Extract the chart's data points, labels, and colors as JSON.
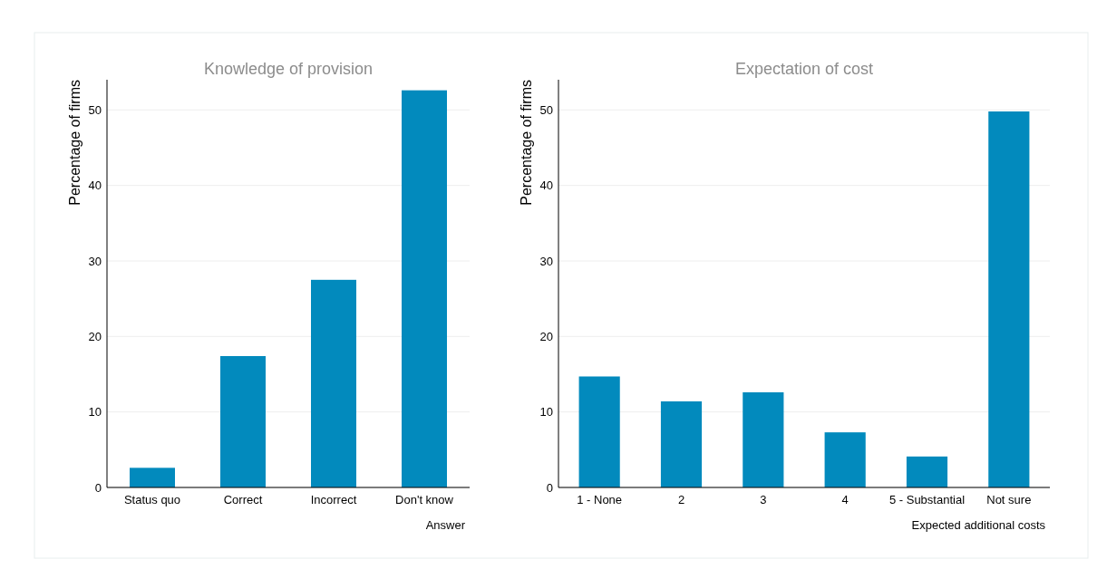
{
  "chart_data": [
    {
      "type": "bar",
      "title": "Knowledge of provision",
      "xlabel": "Answer",
      "ylabel": "Percentage of firms",
      "categories": [
        "Status quo",
        "Correct",
        "Incorrect",
        "Don't know"
      ],
      "values": [
        2.6,
        17.4,
        27.5,
        52.6
      ],
      "color": "#028abd",
      "ylim": [
        0,
        54
      ],
      "yticks": [
        0,
        10,
        20,
        30,
        40,
        50
      ],
      "grid": "y"
    },
    {
      "type": "bar",
      "title": "Expectation of cost",
      "xlabel": "Expected additional costs",
      "ylabel": "Percentage of firms",
      "categories": [
        "1 - None",
        "2",
        "3",
        "4",
        "5 - Substantial",
        "Not sure"
      ],
      "values": [
        14.7,
        11.4,
        12.6,
        7.3,
        4.1,
        49.8
      ],
      "color": "#028abd",
      "ylim": [
        0,
        54
      ],
      "yticks": [
        0,
        10,
        20,
        30,
        40,
        50
      ],
      "grid": "y"
    }
  ]
}
